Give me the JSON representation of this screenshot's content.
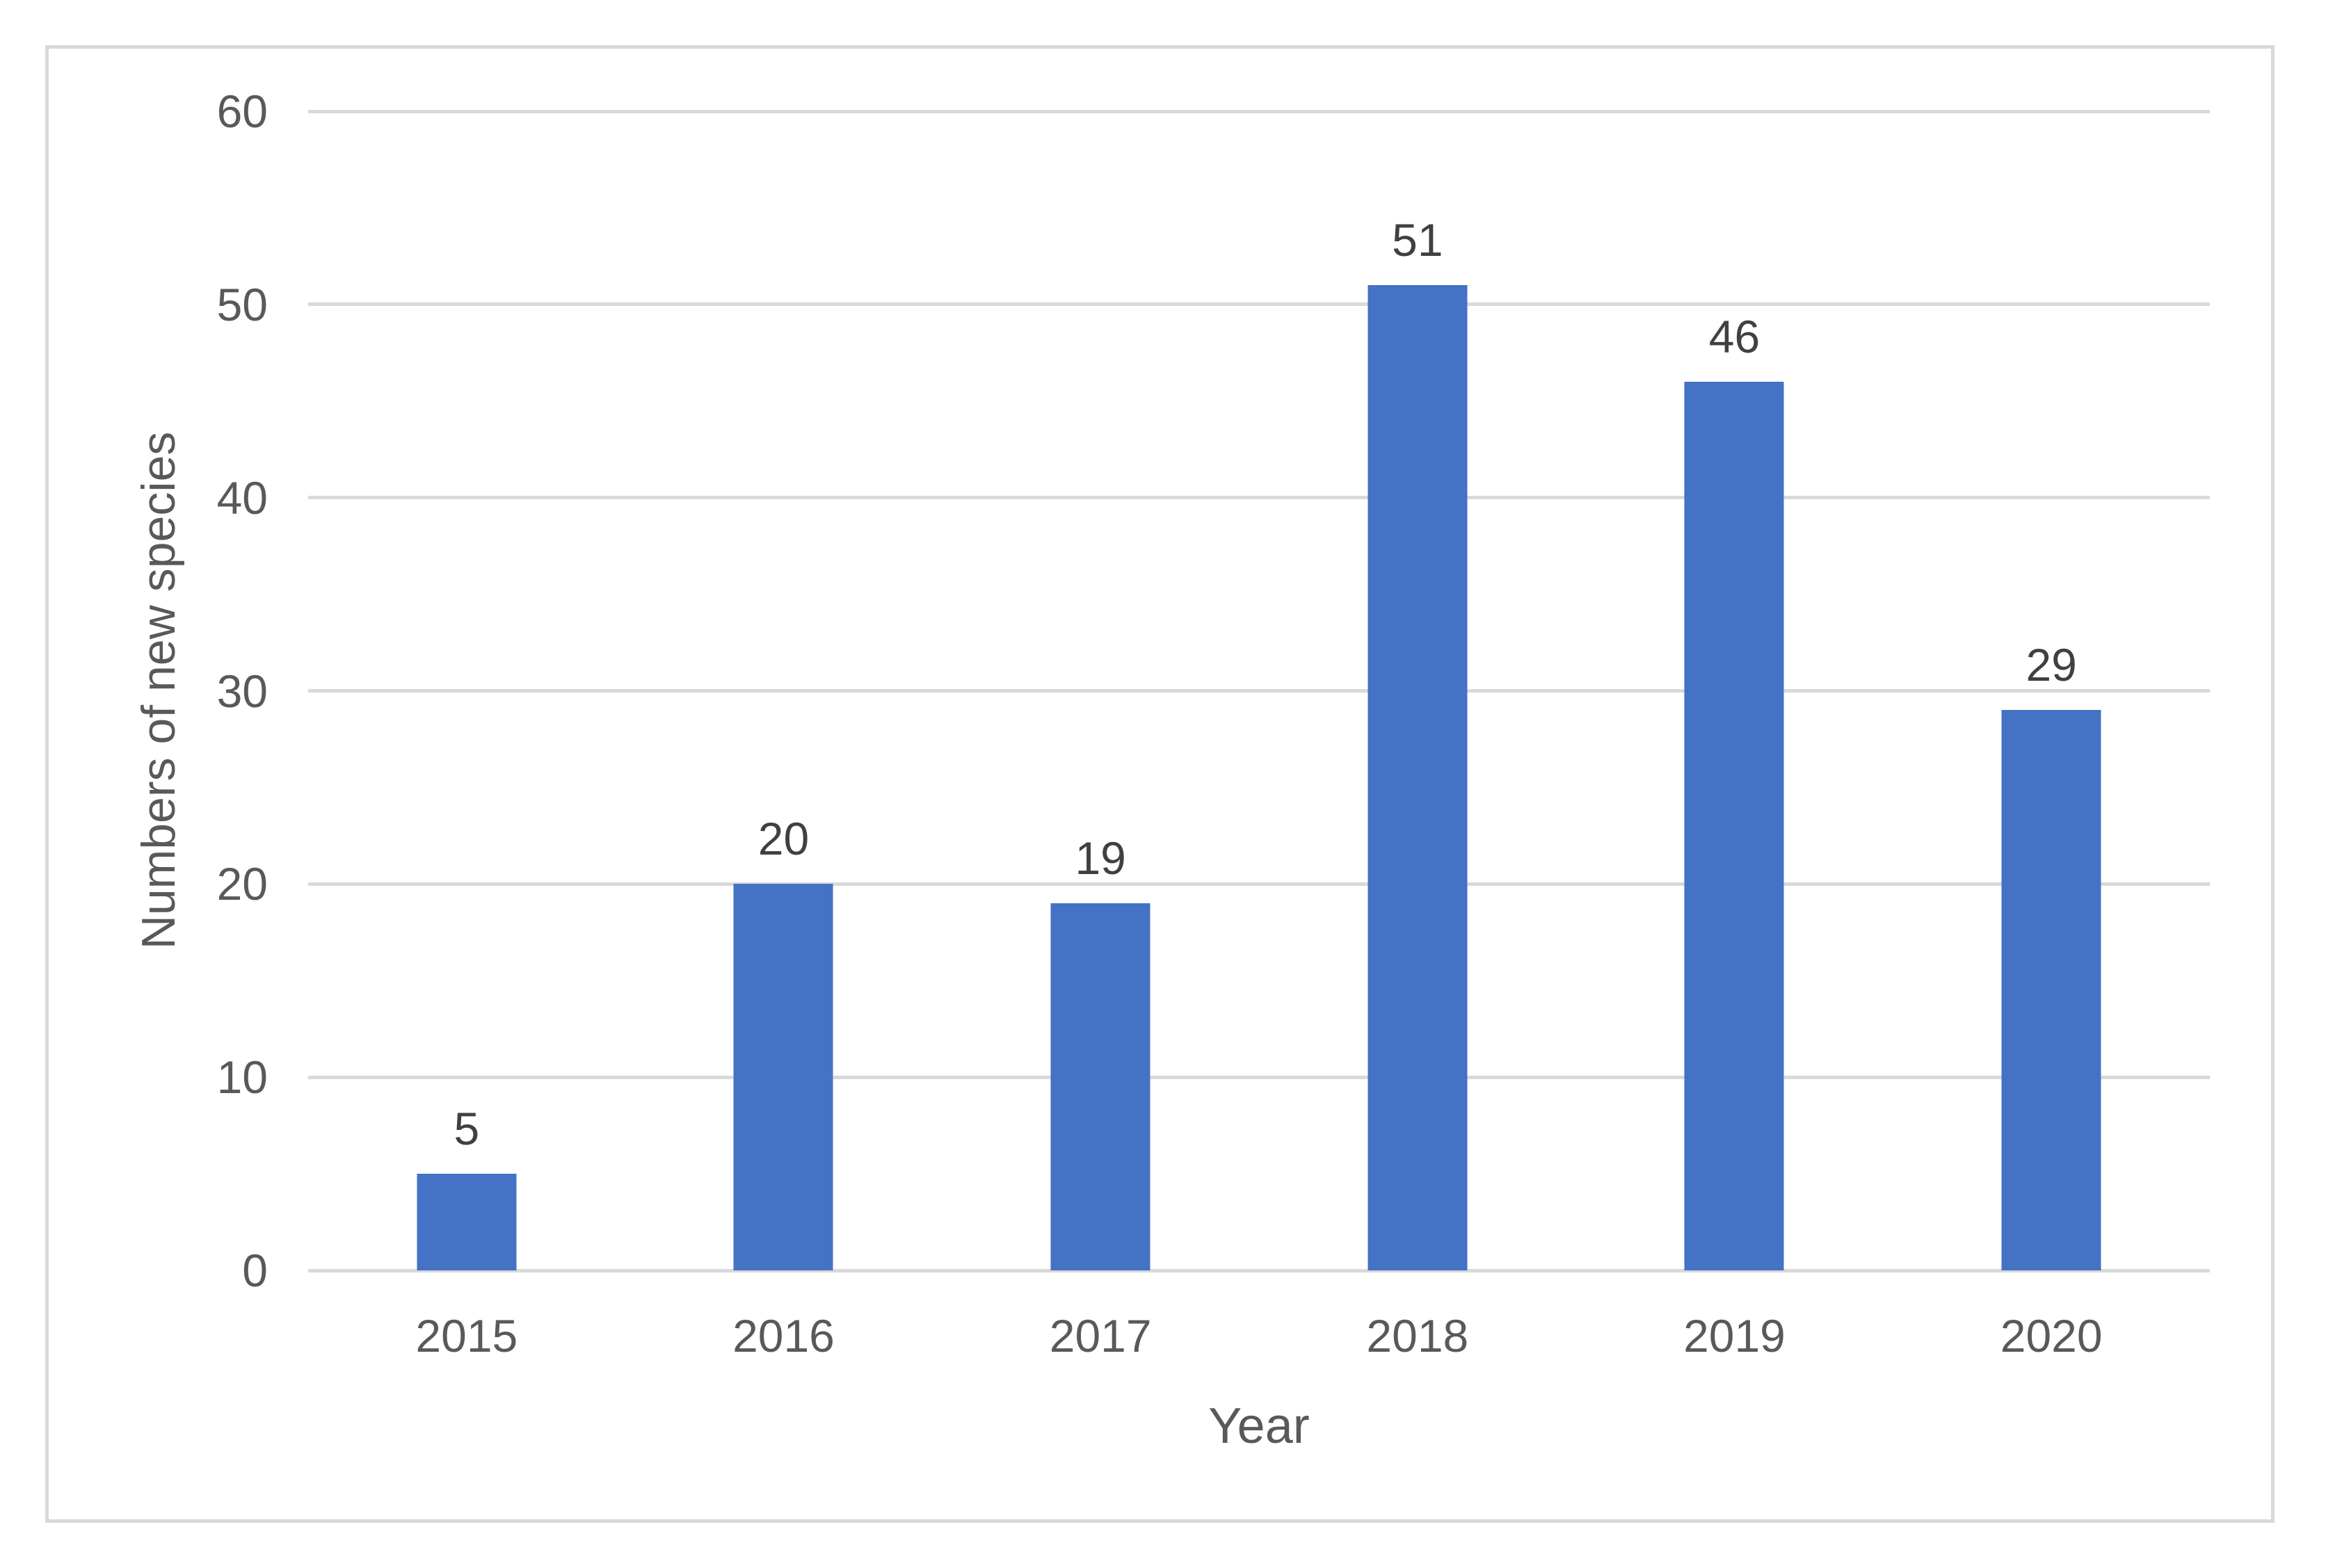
{
  "chart_data": {
    "type": "bar",
    "title": "",
    "categories": [
      "2015",
      "2016",
      "2017",
      "2018",
      "2019",
      "2020"
    ],
    "values": [
      5,
      20,
      19,
      51,
      46,
      29
    ],
    "data_labels": [
      "5",
      "20",
      "19",
      "51",
      "46",
      "29"
    ],
    "xlabel": "Year",
    "ylabel": "Numbers of new species",
    "ylim": [
      0,
      60
    ],
    "yticks": [
      0,
      10,
      20,
      30,
      40,
      50,
      60
    ],
    "grid": "horizontal-on",
    "legend": "none",
    "colors": {
      "bar": "#4472C4",
      "gridline": "#D9D9D9",
      "axis_text": "#595959",
      "data_label": "#404040",
      "frame_border": "#D9D9D9",
      "background": "#FFFFFF"
    }
  }
}
